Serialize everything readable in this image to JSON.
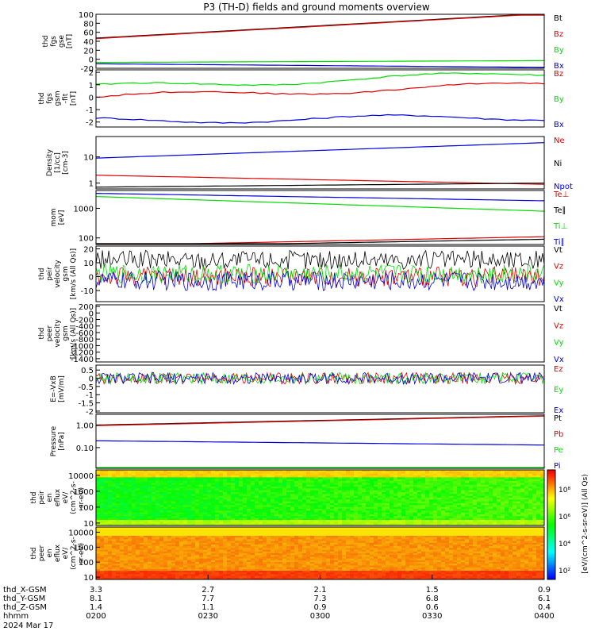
{
  "title": "P3 (TH-D) fields and ground moments overview",
  "colors": {
    "black": "#000000",
    "red": "#e00000",
    "green": "#00dd00",
    "blue": "#0000dd"
  },
  "chart_data": [
    {
      "type": "line",
      "id": "fgs_gse",
      "ylabel": [
        "thd",
        "fgs",
        "gse",
        "[nT]"
      ],
      "ylim": [
        -20,
        100
      ],
      "yticks": [
        -20,
        0,
        20,
        40,
        60,
        80,
        100
      ],
      "series": [
        {
          "name": "Bt",
          "color": "black",
          "start": 47,
          "end": 102
        },
        {
          "name": "Bz",
          "color": "red",
          "start": 46,
          "end": 101
        },
        {
          "name": "By",
          "color": "green",
          "start": -7,
          "end": -3
        },
        {
          "name": "Bx",
          "color": "blue",
          "start": -10,
          "end": -18
        }
      ]
    },
    {
      "type": "line",
      "id": "fgs_dsl",
      "ylabel": [
        "thd",
        "fgs",
        "gsm",
        "-fit",
        "[nT]"
      ],
      "ylim": [
        -2.4,
        2.2
      ],
      "yticks": [
        -2,
        -1,
        0,
        1,
        2
      ],
      "series": [
        {
          "name": "Bz",
          "color": "red",
          "start": 0,
          "end": 1
        },
        {
          "name": "By",
          "color": "green",
          "start": 0.8,
          "end": 1.9
        },
        {
          "name": "Bx",
          "color": "blue",
          "start": -1.9,
          "end": -1.6
        }
      ]
    },
    {
      "type": "line",
      "id": "density",
      "ylabel": [
        "Density",
        "[1/cc]",
        "[cm-3]"
      ],
      "ylim": [
        0.6,
        60
      ],
      "log": true,
      "yticks": [
        1,
        10
      ],
      "series": [
        {
          "name": "Ne",
          "color": "red",
          "start": 2,
          "end": 0.9
        },
        {
          "name": "Ni",
          "color": "black",
          "start": 0.7,
          "end": 1
        },
        {
          "name": "Npot",
          "color": "blue",
          "start": 9,
          "end": 35
        }
      ],
      "legend_extra": [
        {
          "name": "Ne",
          "color": "red"
        },
        {
          "name": "Ni",
          "color": "black"
        },
        {
          "name": "Npot",
          "color": "blue"
        }
      ]
    },
    {
      "type": "line",
      "id": "temperature",
      "ylabel": [
        "mom",
        "[eV]"
      ],
      "ylim": [
        60,
        4000
      ],
      "log": true,
      "yticks": [
        100,
        1000
      ],
      "series": [
        {
          "name": "Te⊥",
          "color": "red",
          "start": 55,
          "end": 110
        },
        {
          "name": "Te∥",
          "color": "black",
          "start": 50,
          "end": 90
        },
        {
          "name": "Ti⊥",
          "color": "green",
          "start": 2500,
          "end": 800
        },
        {
          "name": "Ti∥",
          "color": "blue",
          "start": 3200,
          "end": 1800
        }
      ]
    },
    {
      "type": "line",
      "id": "peir_velocity",
      "ylabel": [
        "thd",
        "peir",
        "velocity",
        "gsm",
        "[km/s (All Qs)]"
      ],
      "ylim": [
        -18,
        22
      ],
      "yticks": [
        -10,
        0,
        10,
        20
      ],
      "series": [
        {
          "name": "Vt",
          "color": "black",
          "start": 12,
          "end": 12
        },
        {
          "name": "Vz",
          "color": "red",
          "start": 0,
          "end": 0
        },
        {
          "name": "Vy",
          "color": "green",
          "start": 2,
          "end": 2
        },
        {
          "name": "Vx",
          "color": "blue",
          "start": -3,
          "end": -3
        }
      ]
    },
    {
      "type": "line",
      "id": "peer_velocity",
      "ylabel": [
        "thd",
        "peer",
        "velocity",
        "gsm",
        "[km/s (All Qs)]"
      ],
      "ylim": [
        -1500,
        250
      ],
      "yticks": [
        -1400,
        -1200,
        -1000,
        -800,
        -600,
        -400,
        -200,
        0,
        200
      ],
      "series": [
        {
          "name": "Vt",
          "color": "black"
        },
        {
          "name": "Vz",
          "color": "red"
        },
        {
          "name": "Vy",
          "color": "green"
        },
        {
          "name": "Vx",
          "color": "blue"
        }
      ]
    },
    {
      "type": "line",
      "id": "efield",
      "ylabel": [
        "E=-VxB",
        "[mV/m]"
      ],
      "ylim": [
        -2.1,
        0.8
      ],
      "yticks": [
        -2.0,
        -1.5,
        -1.0,
        -0.5,
        0.0,
        0.5
      ],
      "series": [
        {
          "name": "Ez",
          "color": "red",
          "start": 0,
          "end": 0
        },
        {
          "name": "Ey",
          "color": "green",
          "start": 0,
          "end": 0
        },
        {
          "name": "Ex",
          "color": "blue",
          "start": 0,
          "end": 0
        }
      ]
    },
    {
      "type": "line",
      "id": "pressure",
      "ylabel": [
        "Pressure",
        "[nPa]"
      ],
      "ylim": [
        0.012,
        3
      ],
      "log": true,
      "yticks": [
        0.1,
        1.0
      ],
      "ytick_labels": [
        "0.10",
        "1.00"
      ],
      "series": [
        {
          "name": "Pt",
          "color": "black",
          "start": 1.0,
          "end": 2.6
        },
        {
          "name": "Pb",
          "color": "red",
          "start": 0.95,
          "end": 2.5
        },
        {
          "name": "Pe",
          "color": "green",
          "start": 0.012,
          "end": 0.013
        },
        {
          "name": "Pi",
          "color": "blue",
          "start": 0.2,
          "end": 0.13
        }
      ]
    },
    {
      "type": "heatmap",
      "id": "peir_spec",
      "ylabel": [
        "thd",
        "peir",
        "en",
        "eflux",
        "eV/",
        "(cm^2-s-",
        "sr-eV)"
      ],
      "ylim": [
        7,
        22000
      ],
      "log": true,
      "yticks": [
        10,
        100,
        1000,
        10000
      ],
      "ytick_labels": [
        "10",
        "100",
        "1000",
        "10000"
      ]
    },
    {
      "type": "heatmap",
      "id": "peer_spec",
      "ylabel": [
        "thd",
        "peer",
        "en",
        "eflux",
        "eV/",
        "(cm^2-s-",
        "sr-eV)"
      ],
      "ylim": [
        7,
        22000
      ],
      "log": true,
      "yticks": [
        10,
        100,
        1000,
        10000
      ],
      "ytick_labels": [
        "10",
        "100",
        "1000",
        "10000"
      ]
    }
  ],
  "colorbar": {
    "labels": [
      "10²",
      "10⁴",
      "10⁶",
      "10⁸"
    ],
    "top_label": "10⁸",
    "units": "[eV/(cm^2-s-sr-eV)] (All Qs)"
  },
  "xaxis": {
    "ticks": [
      "0200",
      "0230",
      "0300",
      "0330",
      "0400"
    ],
    "rows": [
      {
        "label": "thd_X-GSM",
        "values": [
          "3.3",
          "2.7",
          "2.1",
          "1.5",
          "0.9"
        ]
      },
      {
        "label": "thd_Y-GSM",
        "values": [
          "8.1",
          "7.7",
          "7.3",
          "6.8",
          "6.1"
        ]
      },
      {
        "label": "thd_Z-GSM",
        "values": [
          "1.4",
          "1.1",
          "0.9",
          "0.6",
          "0.4"
        ]
      },
      {
        "label": "hhmm",
        "values": [
          "0200",
          "0230",
          "0300",
          "0330",
          "0400"
        ]
      }
    ],
    "date": "2024 Mar 17"
  }
}
